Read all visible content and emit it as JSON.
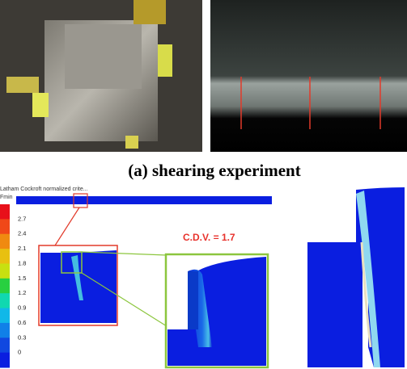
{
  "figure": {
    "caption": "(a) shearing experiment",
    "legend": {
      "title": "Latham Cockroft normalized crite...",
      "label": "Fmin",
      "ticks": [
        "2.7",
        "2.4",
        "2.1",
        "1.8",
        "1.5",
        "1.2",
        "0.9",
        "0.6",
        "0.3",
        "0"
      ]
    },
    "annotation": "C.D.V. = 1.7"
  }
}
